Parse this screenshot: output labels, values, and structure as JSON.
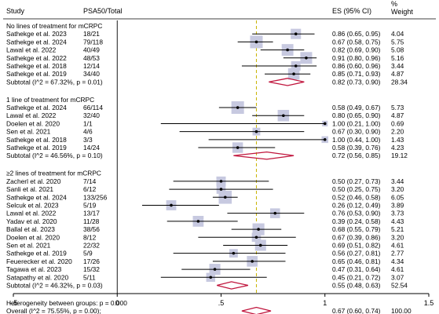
{
  "chart_data": {
    "type": "forest",
    "headers": {
      "study": "Study",
      "counts": "PSA50/Total",
      "es": "ES (95% CI)",
      "weight": "%\nWeight"
    },
    "colors": {
      "ci_line": "#000000",
      "box": "#c7c9e0",
      "diamond": "#c0143c",
      "null_line": "#000000",
      "overall_line": "#c8b400"
    },
    "xaxis": {
      "ticks": [
        -0.5,
        0,
        0.5,
        1,
        1.5
      ],
      "tick_labels": [
        "-.5",
        "0",
        ".5",
        "1",
        "1.5"
      ],
      "range": [
        -0.5,
        1.5
      ]
    },
    "null_value": 0,
    "overall_value": 0.67,
    "groups": [
      {
        "title": "No lines of treatment for mCRPC",
        "studies": [
          {
            "study": "Sathekge et al. 2023",
            "counts": "18/21",
            "es": 0.86,
            "lo": 0.65,
            "hi": 0.95,
            "es_text": "0.86 (0.65, 0.95)",
            "weight": "4.04",
            "wnum": 4.04
          },
          {
            "study": "Sathekge et al. 2024",
            "counts": "79/118",
            "es": 0.67,
            "lo": 0.58,
            "hi": 0.75,
            "es_text": "0.67 (0.58, 0.75)",
            "weight": "5.75",
            "wnum": 5.75
          },
          {
            "study": "Lawal et al. 2022",
            "counts": "40/49",
            "es": 0.82,
            "lo": 0.69,
            "hi": 0.9,
            "es_text": "0.82 (0.69, 0.90)",
            "weight": "5.08",
            "wnum": 5.08
          },
          {
            "study": "Sathekge et al. 2022",
            "counts": "48/53",
            "es": 0.91,
            "lo": 0.8,
            "hi": 0.96,
            "es_text": "0.91 (0.80, 0.96)",
            "weight": "5.16",
            "wnum": 5.16
          },
          {
            "study": "Sathekge et al. 2018",
            "counts": "12/14",
            "es": 0.86,
            "lo": 0.6,
            "hi": 0.96,
            "es_text": "0.86 (0.60, 0.96)",
            "weight": "3.44",
            "wnum": 3.44
          },
          {
            "study": "Sathekge et al. 2019",
            "counts": "34/40",
            "es": 0.85,
            "lo": 0.71,
            "hi": 0.93,
            "es_text": "0.85 (0.71, 0.93)",
            "weight": "4.87",
            "wnum": 4.87
          }
        ],
        "subtotal": {
          "label": "Subtotal  (I^2 = 67.32%, p = 0.01)",
          "es": 0.82,
          "lo": 0.73,
          "hi": 0.9,
          "es_text": "0.82 (0.73, 0.90)",
          "weight": "28.34"
        }
      },
      {
        "title": "1 line of treatment for mCRPC",
        "studies": [
          {
            "study": "Sathekge et al. 2024",
            "counts": "66/114",
            "es": 0.58,
            "lo": 0.49,
            "hi": 0.67,
            "es_text": "0.58 (0.49, 0.67)",
            "weight": "5.73",
            "wnum": 5.73
          },
          {
            "study": "Lawal et al. 2022",
            "counts": "32/40",
            "es": 0.8,
            "lo": 0.65,
            "hi": 0.9,
            "es_text": "0.80 (0.65, 0.90)",
            "weight": "4.87",
            "wnum": 4.87
          },
          {
            "study": "Doelen et al. 2020",
            "counts": "1/1",
            "es": 1.0,
            "lo": 0.21,
            "hi": 1.0,
            "es_text": "1.00 (0.21, 1.00)",
            "weight": "0.69",
            "wnum": 0.69
          },
          {
            "study": "Sen et al. 2021",
            "counts": "4/6",
            "es": 0.67,
            "lo": 0.3,
            "hi": 0.9,
            "es_text": "0.67 (0.30, 0.90)",
            "weight": "2.20",
            "wnum": 2.2
          },
          {
            "study": "Sathekge et al. 2018",
            "counts": "3/3",
            "es": 1.0,
            "lo": 0.44,
            "hi": 1.0,
            "es_text": "1.00 (0.44, 1.00)",
            "weight": "1.43",
            "wnum": 1.43
          },
          {
            "study": "Sathekge et al. 2019",
            "counts": "14/24",
            "es": 0.58,
            "lo": 0.39,
            "hi": 0.76,
            "es_text": "0.58 (0.39, 0.76)",
            "weight": "4.23",
            "wnum": 4.23
          }
        ],
        "subtotal": {
          "label": "Subtotal  (I^2 = 46.56%, p = 0.10)",
          "es": 0.72,
          "lo": 0.56,
          "hi": 0.85,
          "es_text": "0.72 (0.56, 0.85)",
          "weight": "19.12"
        }
      },
      {
        "title": "≥2 lines of treatment for mCRPC",
        "studies": [
          {
            "study": "Zacherl et al. 2020",
            "counts": "7/14",
            "es": 0.5,
            "lo": 0.27,
            "hi": 0.73,
            "es_text": "0.50 (0.27, 0.73)",
            "weight": "3.44",
            "wnum": 3.44
          },
          {
            "study": "Sanli et al. 2021",
            "counts": "6/12",
            "es": 0.5,
            "lo": 0.25,
            "hi": 0.75,
            "es_text": "0.50 (0.25, 0.75)",
            "weight": "3.20",
            "wnum": 3.2
          },
          {
            "study": "Sathekge et al. 2024",
            "counts": "133/256",
            "es": 0.52,
            "lo": 0.46,
            "hi": 0.58,
            "es_text": "0.52 (0.46, 0.58)",
            "weight": "6.05",
            "wnum": 6.05
          },
          {
            "study": "Selcuk et al. 2023",
            "counts": "5/19",
            "es": 0.26,
            "lo": 0.12,
            "hi": 0.49,
            "es_text": "0.26 (0.12, 0.49)",
            "weight": "3.89",
            "wnum": 3.89
          },
          {
            "study": "Lawal et al. 2022",
            "counts": "13/17",
            "es": 0.76,
            "lo": 0.53,
            "hi": 0.9,
            "es_text": "0.76 (0.53, 0.90)",
            "weight": "3.73",
            "wnum": 3.73
          },
          {
            "study": "Yadav et al. 2020",
            "counts": "11/28",
            "es": 0.39,
            "lo": 0.24,
            "hi": 0.58,
            "es_text": "0.39 (0.24, 0.58)",
            "weight": "4.43",
            "wnum": 4.43
          },
          {
            "study": "Ballal et al. 2023",
            "counts": "38/56",
            "es": 0.68,
            "lo": 0.55,
            "hi": 0.79,
            "es_text": "0.68 (0.55, 0.79)",
            "weight": "5.21",
            "wnum": 5.21
          },
          {
            "study": "Doelen et al. 2020",
            "counts": "8/12",
            "es": 0.67,
            "lo": 0.39,
            "hi": 0.86,
            "es_text": "0.67 (0.39, 0.86)",
            "weight": "3.20",
            "wnum": 3.2
          },
          {
            "study": "Sen et al. 2021",
            "counts": "22/32",
            "es": 0.69,
            "lo": 0.51,
            "hi": 0.82,
            "es_text": "0.69 (0.51, 0.82)",
            "weight": "4.61",
            "wnum": 4.61
          },
          {
            "study": "Sathekge et al. 2019",
            "counts": "5/9",
            "es": 0.56,
            "lo": 0.27,
            "hi": 0.81,
            "es_text": "0.56 (0.27, 0.81)",
            "weight": "2.77",
            "wnum": 2.77
          },
          {
            "study": "Feuerecker et al. 2020",
            "counts": "17/26",
            "es": 0.65,
            "lo": 0.46,
            "hi": 0.81,
            "es_text": "0.65 (0.46, 0.81)",
            "weight": "4.34",
            "wnum": 4.34
          },
          {
            "study": "Tagawa et al. 2023",
            "counts": "15/32",
            "es": 0.47,
            "lo": 0.31,
            "hi": 0.64,
            "es_text": "0.47 (0.31, 0.64)",
            "weight": "4.61",
            "wnum": 4.61
          },
          {
            "study": "Satapathy et al. 2020",
            "counts": "5/11",
            "es": 0.45,
            "lo": 0.21,
            "hi": 0.72,
            "es_text": "0.45 (0.21, 0.72)",
            "weight": "3.07",
            "wnum": 3.07
          }
        ],
        "subtotal": {
          "label": "Subtotal  (I^2 = 46.32%, p = 0.03)",
          "es": 0.55,
          "lo": 0.48,
          "hi": 0.63,
          "es_text": "0.55 (0.48, 0.63)",
          "weight": "52.54"
        }
      }
    ],
    "heterogeneity": "Heterogeneity between groups: p = 0.000",
    "overall": {
      "label": "Overall  (I^2 = 75.55%, p = 0.00);",
      "es": 0.67,
      "lo": 0.6,
      "hi": 0.74,
      "es_text": "0.67 (0.60, 0.74)",
      "weight": "100.00"
    }
  }
}
